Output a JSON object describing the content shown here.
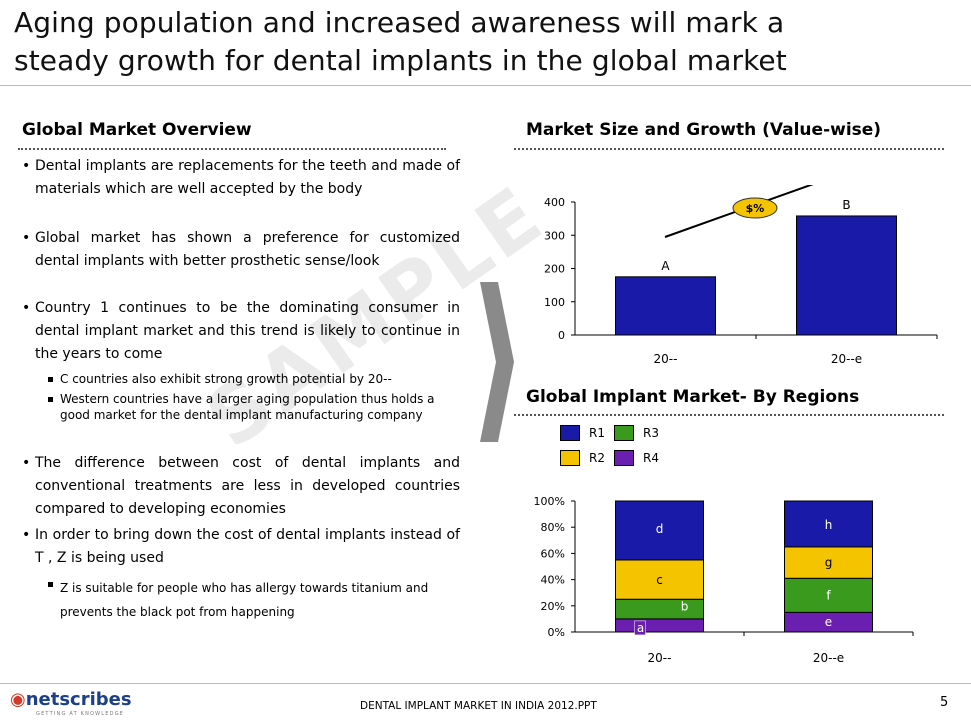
{
  "title_line1": "Aging population and increased awareness will mark a",
  "title_line2": "steady growth for dental implants in the global market",
  "left": {
    "heading": "Global Market Overview",
    "bullets": [
      "Dental implants are replacements for the teeth and made of materials which are well accepted by the body",
      "Global market has shown a preference for customized dental implants with better prosthetic sense/look",
      " Country 1 continues to be the dominating consumer in dental implant market and this trend is likely to continue in the years to come"
    ],
    "sub1": [
      "C  countries also exhibit strong growth potential by 20--",
      "Western countries have a larger aging population thus holds a good market for the dental implant manufacturing company"
    ],
    "bullets2": [
      "The difference between cost of dental implants and conventional treatments are less in developed countries compared to developing economies",
      "In order to bring down the cost of dental implants instead of T  ,  Z  is being used"
    ],
    "sub2": [
      "Z  is suitable for people who has allergy towards titanium and prevents the black pot from happening"
    ]
  },
  "watermark": "SAMPLE",
  "footer": {
    "text": "DENTAL IMPLANT MARKET IN INDIA 2012.PPT",
    "page": "5",
    "logo": "netscribes",
    "logo_sub": "GETTING AT KNOWLEDGE"
  },
  "colors": {
    "navy": "#1a1aa8",
    "green": "#3a9a1e",
    "yellow": "#f5c400",
    "purple": "#6a1fb0"
  },
  "chart_data": [
    {
      "type": "bar",
      "title": "Market Size and Growth (Value-wise)",
      "categories": [
        "20--",
        "20--e"
      ],
      "values": [
        175,
        358
      ],
      "data_labels": [
        "A",
        "B"
      ],
      "ylim": [
        0,
        400
      ],
      "yticks": [
        0,
        100,
        200,
        300,
        400
      ],
      "annotation": "$%"
    },
    {
      "type": "bar",
      "stacked": true,
      "title": "Global Implant Market- By Regions",
      "categories": [
        "20--",
        "20--e"
      ],
      "yticks": [
        "0%",
        "20%",
        "40%",
        "60%",
        "80%",
        "100%"
      ],
      "legend": [
        "R1",
        "R3",
        "R2",
        "R4"
      ],
      "series": [
        {
          "name": "R4",
          "color": "#6a1fb0",
          "values": [
            10,
            15
          ],
          "labels": [
            "a",
            "e"
          ]
        },
        {
          "name": "R3",
          "color": "#3a9a1e",
          "values": [
            15,
            26
          ],
          "labels": [
            "b",
            "f"
          ]
        },
        {
          "name": "R2",
          "color": "#f5c400",
          "values": [
            30,
            24
          ],
          "labels": [
            "c",
            "g"
          ]
        },
        {
          "name": "R1",
          "color": "#1a1aa8",
          "values": [
            45,
            35
          ],
          "labels": [
            "d",
            "h"
          ]
        }
      ]
    }
  ]
}
